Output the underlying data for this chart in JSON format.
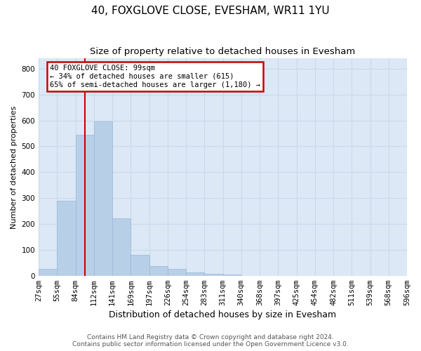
{
  "title1": "40, FOXGLOVE CLOSE, EVESHAM, WR11 1YU",
  "title2": "Size of property relative to detached houses in Evesham",
  "xlabel": "Distribution of detached houses by size in Evesham",
  "ylabel": "Number of detached properties",
  "bar_values": [
    25,
    290,
    545,
    595,
    222,
    80,
    38,
    25,
    12,
    8,
    5,
    0,
    0,
    0,
    0,
    0,
    0,
    0,
    0,
    0
  ],
  "tick_labels": [
    "27sqm",
    "55sqm",
    "84sqm",
    "112sqm",
    "141sqm",
    "169sqm",
    "197sqm",
    "226sqm",
    "254sqm",
    "283sqm",
    "311sqm",
    "340sqm",
    "368sqm",
    "397sqm",
    "425sqm",
    "454sqm",
    "482sqm",
    "511sqm",
    "539sqm",
    "568sqm",
    "596sqm"
  ],
  "bar_color": "#b8cfe8",
  "bar_edge_color": "#9ab8d8",
  "annotation_text": "40 FOXGLOVE CLOSE: 99sqm\n← 34% of detached houses are smaller (615)\n65% of semi-detached houses are larger (1,180) →",
  "annotation_box_facecolor": "#ffffff",
  "annotation_box_edgecolor": "#cc0000",
  "vline_color": "#cc0000",
  "ylim": [
    0,
    840
  ],
  "yticks": [
    0,
    100,
    200,
    300,
    400,
    500,
    600,
    700,
    800
  ],
  "grid_color": "#c8d8ec",
  "axes_facecolor": "#dce8f5",
  "footer_text": "Contains HM Land Registry data © Crown copyright and database right 2024.\nContains public sector information licensed under the Open Government Licence v3.0.",
  "title1_fontsize": 11,
  "title2_fontsize": 9.5,
  "ylabel_fontsize": 8,
  "xlabel_fontsize": 9,
  "tick_fontsize": 7.5,
  "vline_x": 2.0
}
